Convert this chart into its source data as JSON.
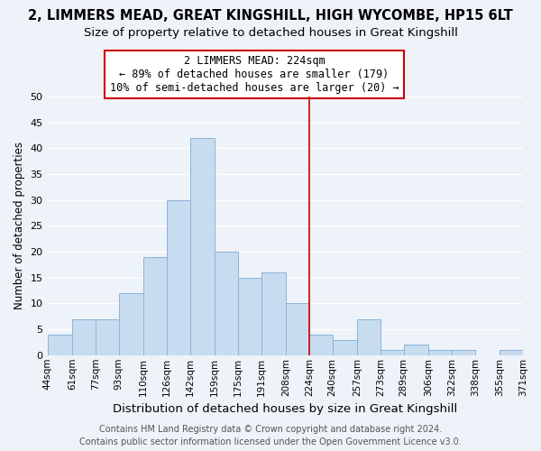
{
  "title": "2, LIMMERS MEAD, GREAT KINGSHILL, HIGH WYCOMBE, HP15 6LT",
  "subtitle": "Size of property relative to detached houses in Great Kingshill",
  "xlabel": "Distribution of detached houses by size in Great Kingshill",
  "ylabel": "Number of detached properties",
  "bin_edges": [
    44,
    61,
    77,
    93,
    110,
    126,
    142,
    159,
    175,
    191,
    208,
    224,
    240,
    257,
    273,
    289,
    306,
    322,
    338,
    355,
    371
  ],
  "counts": [
    4,
    7,
    7,
    12,
    19,
    30,
    42,
    20,
    15,
    16,
    10,
    4,
    3,
    7,
    1,
    2,
    1,
    1,
    0,
    1
  ],
  "bar_color": "#c8dcf0",
  "bar_edge_color": "#8ab4d8",
  "vline_x": 224,
  "vline_color": "#cc0000",
  "ylim": [
    0,
    50
  ],
  "yticks": [
    0,
    5,
    10,
    15,
    20,
    25,
    30,
    35,
    40,
    45,
    50
  ],
  "tick_labels": [
    "44sqm",
    "61sqm",
    "77sqm",
    "93sqm",
    "110sqm",
    "126sqm",
    "142sqm",
    "159sqm",
    "175sqm",
    "191sqm",
    "208sqm",
    "224sqm",
    "240sqm",
    "257sqm",
    "273sqm",
    "289sqm",
    "306sqm",
    "322sqm",
    "338sqm",
    "355sqm",
    "371sqm"
  ],
  "annotation_title": "2 LIMMERS MEAD: 224sqm",
  "annotation_line1": "← 89% of detached houses are smaller (179)",
  "annotation_line2": "10% of semi-detached houses are larger (20) →",
  "annotation_box_color": "#ffffff",
  "annotation_box_edge": "#cc0000",
  "footer_line1": "Contains HM Land Registry data © Crown copyright and database right 2024.",
  "footer_line2": "Contains public sector information licensed under the Open Government Licence v3.0.",
  "bg_color": "#eef2f9",
  "plot_bg_color": "#eef2f9",
  "grid_color": "#ffffff",
  "title_fontsize": 10.5,
  "subtitle_fontsize": 9.5,
  "xlabel_fontsize": 9.5,
  "ylabel_fontsize": 8.5,
  "tick_fontsize": 7.5,
  "annotation_fontsize": 8.5,
  "footer_fontsize": 7.0
}
